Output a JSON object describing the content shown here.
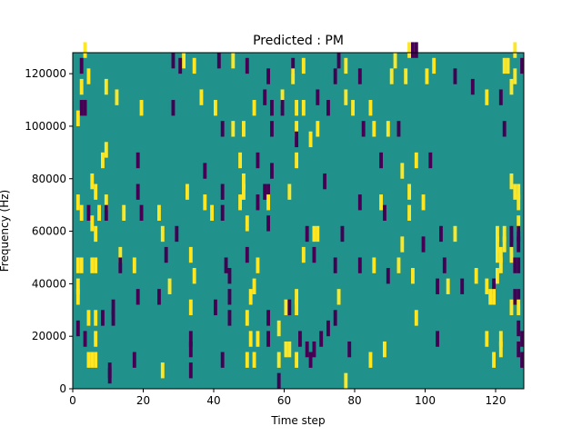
{
  "chart_data": {
    "type": "heatmap",
    "title": "Predicted : PM",
    "xlabel": "Time step",
    "ylabel": "Frequency (Hz)",
    "xlim": [
      0,
      128
    ],
    "ylim": [
      0,
      128000
    ],
    "xticks": [
      0,
      20,
      40,
      60,
      80,
      100,
      120
    ],
    "yticks": [
      0,
      20000,
      40000,
      60000,
      80000,
      100000,
      120000
    ],
    "xtick_labels": [
      "0",
      "20",
      "40",
      "60",
      "80",
      "100",
      "120"
    ],
    "ytick_labels": [
      "0",
      "20000",
      "40000",
      "60000",
      "80000",
      "100000",
      "120000"
    ],
    "colormap": "viridis",
    "values_note": "matrix of -1/0/1 values; background 0 (teal), positive 1 (yellow), negative -1 (purple)",
    "colors": {
      "zero": "#21918c",
      "positive": "#fde725",
      "negative": "#440154"
    },
    "cells": [
      {
        "t": 3,
        "f": 126000,
        "v": 1
      },
      {
        "t": 95,
        "f": 126000,
        "v": 1
      },
      {
        "t": 96,
        "f": 126000,
        "v": -1
      },
      {
        "t": 97,
        "f": 126000,
        "v": -1
      },
      {
        "t": 125,
        "f": 126000,
        "v": 1
      },
      {
        "t": 28,
        "f": 122000,
        "v": -1
      },
      {
        "t": 31,
        "f": 122000,
        "v": 1
      },
      {
        "t": 41,
        "f": 122000,
        "v": -1
      },
      {
        "t": 45,
        "f": 122000,
        "v": 1
      },
      {
        "t": 75,
        "f": 122000,
        "v": -1
      },
      {
        "t": 91,
        "f": 122000,
        "v": 1
      },
      {
        "t": 2,
        "f": 120000,
        "v": -1
      },
      {
        "t": 30,
        "f": 120000,
        "v": -1
      },
      {
        "t": 34,
        "f": 120000,
        "v": 1
      },
      {
        "t": 49,
        "f": 120000,
        "v": -1
      },
      {
        "t": 62,
        "f": 120000,
        "v": -1
      },
      {
        "t": 65,
        "f": 120000,
        "v": 1
      },
      {
        "t": 77,
        "f": 120000,
        "v": 1
      },
      {
        "t": 102,
        "f": 120000,
        "v": 1
      },
      {
        "t": 122,
        "f": 120000,
        "v": 1
      },
      {
        "t": 123,
        "f": 120000,
        "v": 1
      },
      {
        "t": 127,
        "f": 120000,
        "v": -1
      },
      {
        "t": 4,
        "f": 116000,
        "v": 1
      },
      {
        "t": 55,
        "f": 116000,
        "v": -1
      },
      {
        "t": 62,
        "f": 116000,
        "v": 1
      },
      {
        "t": 74,
        "f": 116000,
        "v": -1
      },
      {
        "t": 81,
        "f": 116000,
        "v": -1
      },
      {
        "t": 90,
        "f": 116000,
        "v": 1
      },
      {
        "t": 94,
        "f": 116000,
        "v": 1
      },
      {
        "t": 100,
        "f": 116000,
        "v": 1
      },
      {
        "t": 108,
        "f": 116000,
        "v": -1
      },
      {
        "t": 125,
        "f": 116000,
        "v": 1
      },
      {
        "t": 2,
        "f": 112000,
        "v": 1
      },
      {
        "t": 9,
        "f": 112000,
        "v": 1
      },
      {
        "t": 113,
        "f": 112000,
        "v": -1
      },
      {
        "t": 124,
        "f": 112000,
        "v": 1
      },
      {
        "t": 12,
        "f": 108000,
        "v": 1
      },
      {
        "t": 36,
        "f": 108000,
        "v": 1
      },
      {
        "t": 54,
        "f": 108000,
        "v": -1
      },
      {
        "t": 59,
        "f": 108000,
        "v": 1
      },
      {
        "t": 69,
        "f": 108000,
        "v": -1
      },
      {
        "t": 77,
        "f": 108000,
        "v": 1
      },
      {
        "t": 117,
        "f": 108000,
        "v": 1
      },
      {
        "t": 121,
        "f": 108000,
        "v": -1
      },
      {
        "t": 2,
        "f": 104000,
        "v": -1
      },
      {
        "t": 3,
        "f": 104000,
        "v": -1
      },
      {
        "t": 19,
        "f": 104000,
        "v": 1
      },
      {
        "t": 28,
        "f": 104000,
        "v": -1
      },
      {
        "t": 40,
        "f": 104000,
        "v": 1
      },
      {
        "t": 51,
        "f": 104000,
        "v": 1
      },
      {
        "t": 56,
        "f": 104000,
        "v": -1
      },
      {
        "t": 59,
        "f": 104000,
        "v": -1
      },
      {
        "t": 63,
        "f": 104000,
        "v": 1
      },
      {
        "t": 65,
        "f": 104000,
        "v": 1
      },
      {
        "t": 72,
        "f": 104000,
        "v": -1
      },
      {
        "t": 79,
        "f": 104000,
        "v": 1
      },
      {
        "t": 84,
        "f": 104000,
        "v": 1
      },
      {
        "t": 1,
        "f": 100000,
        "v": 1
      },
      {
        "t": 42,
        "f": 96000,
        "v": -1
      },
      {
        "t": 45,
        "f": 96000,
        "v": 1
      },
      {
        "t": 48,
        "f": 96000,
        "v": 1
      },
      {
        "t": 56,
        "f": 96000,
        "v": -1
      },
      {
        "t": 63,
        "f": 96000,
        "v": 1
      },
      {
        "t": 69,
        "f": 96000,
        "v": 1
      },
      {
        "t": 82,
        "f": 96000,
        "v": -1
      },
      {
        "t": 85,
        "f": 96000,
        "v": 1
      },
      {
        "t": 89,
        "f": 96000,
        "v": 1
      },
      {
        "t": 92,
        "f": 96000,
        "v": -1
      },
      {
        "t": 122,
        "f": 96000,
        "v": -1
      },
      {
        "t": 63,
        "f": 92000,
        "v": -1
      },
      {
        "t": 67,
        "f": 92000,
        "v": 1
      },
      {
        "t": 9,
        "f": 88000,
        "v": 1
      },
      {
        "t": 8,
        "f": 84000,
        "v": 1
      },
      {
        "t": 18,
        "f": 84000,
        "v": -1
      },
      {
        "t": 47,
        "f": 84000,
        "v": 1
      },
      {
        "t": 52,
        "f": 84000,
        "v": -1
      },
      {
        "t": 63,
        "f": 84000,
        "v": 1
      },
      {
        "t": 87,
        "f": 84000,
        "v": -1
      },
      {
        "t": 97,
        "f": 84000,
        "v": 1
      },
      {
        "t": 101,
        "f": 84000,
        "v": -1
      },
      {
        "t": 37,
        "f": 80000,
        "v": -1
      },
      {
        "t": 56,
        "f": 80000,
        "v": -1
      },
      {
        "t": 93,
        "f": 80000,
        "v": 1
      },
      {
        "t": 5,
        "f": 76000,
        "v": 1
      },
      {
        "t": 48,
        "f": 76000,
        "v": 1
      },
      {
        "t": 71,
        "f": 76000,
        "v": -1
      },
      {
        "t": 124,
        "f": 76000,
        "v": 1
      },
      {
        "t": 6,
        "f": 72000,
        "v": 1
      },
      {
        "t": 18,
        "f": 72000,
        "v": -1
      },
      {
        "t": 32,
        "f": 72000,
        "v": 1
      },
      {
        "t": 42,
        "f": 72000,
        "v": -1
      },
      {
        "t": 48,
        "f": 72000,
        "v": 1
      },
      {
        "t": 54,
        "f": 72000,
        "v": -1
      },
      {
        "t": 55,
        "f": 72000,
        "v": -1
      },
      {
        "t": 61,
        "f": 72000,
        "v": 1
      },
      {
        "t": 95,
        "f": 72000,
        "v": 1
      },
      {
        "t": 125,
        "f": 72000,
        "v": 1
      },
      {
        "t": 126,
        "f": 72000,
        "v": 1
      },
      {
        "t": 1,
        "f": 68000,
        "v": 1
      },
      {
        "t": 9,
        "f": 68000,
        "v": 1
      },
      {
        "t": 37,
        "f": 68000,
        "v": 1
      },
      {
        "t": 47,
        "f": 68000,
        "v": 1
      },
      {
        "t": 52,
        "f": 68000,
        "v": -1
      },
      {
        "t": 55,
        "f": 68000,
        "v": 1
      },
      {
        "t": 81,
        "f": 68000,
        "v": -1
      },
      {
        "t": 87,
        "f": 68000,
        "v": 1
      },
      {
        "t": 99,
        "f": 68000,
        "v": 1
      },
      {
        "t": 126,
        "f": 68000,
        "v": 1
      },
      {
        "t": 2,
        "f": 64000,
        "v": 1
      },
      {
        "t": 4,
        "f": 64000,
        "v": -1
      },
      {
        "t": 7,
        "f": 64000,
        "v": 1
      },
      {
        "t": 9,
        "f": 64000,
        "v": -1
      },
      {
        "t": 14,
        "f": 64000,
        "v": 1
      },
      {
        "t": 19,
        "f": 64000,
        "v": -1
      },
      {
        "t": 24,
        "f": 64000,
        "v": 1
      },
      {
        "t": 39,
        "f": 64000,
        "v": 1
      },
      {
        "t": 42,
        "f": 64000,
        "v": -1
      },
      {
        "t": 88,
        "f": 64000,
        "v": -1
      },
      {
        "t": 95,
        "f": 64000,
        "v": 1
      },
      {
        "t": 5,
        "f": 60000,
        "v": 1
      },
      {
        "t": 49,
        "f": 60000,
        "v": 1
      },
      {
        "t": 55,
        "f": 60000,
        "v": -1
      },
      {
        "t": 126,
        "f": 60000,
        "v": 1
      },
      {
        "t": 6,
        "f": 56000,
        "v": 1
      },
      {
        "t": 25,
        "f": 56000,
        "v": 1
      },
      {
        "t": 29,
        "f": 56000,
        "v": -1
      },
      {
        "t": 66,
        "f": 56000,
        "v": -1
      },
      {
        "t": 68,
        "f": 56000,
        "v": 1
      },
      {
        "t": 69,
        "f": 56000,
        "v": 1
      },
      {
        "t": 76,
        "f": 56000,
        "v": -1
      },
      {
        "t": 104,
        "f": 56000,
        "v": -1
      },
      {
        "t": 108,
        "f": 56000,
        "v": 1
      },
      {
        "t": 120,
        "f": 56000,
        "v": 1
      },
      {
        "t": 122,
        "f": 56000,
        "v": 1
      },
      {
        "t": 124,
        "f": 56000,
        "v": -1
      },
      {
        "t": 126,
        "f": 56000,
        "v": -1
      },
      {
        "t": 93,
        "f": 52000,
        "v": 1
      },
      {
        "t": 99,
        "f": 52000,
        "v": -1
      },
      {
        "t": 120,
        "f": 52000,
        "v": 1
      },
      {
        "t": 122,
        "f": 52000,
        "v": 1
      },
      {
        "t": 124,
        "f": 52000,
        "v": -1
      },
      {
        "t": 126,
        "f": 52000,
        "v": -1
      },
      {
        "t": 13,
        "f": 48000,
        "v": 1
      },
      {
        "t": 26,
        "f": 48000,
        "v": -1
      },
      {
        "t": 33,
        "f": 48000,
        "v": 1
      },
      {
        "t": 49,
        "f": 48000,
        "v": -1
      },
      {
        "t": 65,
        "f": 48000,
        "v": 1
      },
      {
        "t": 68,
        "f": 48000,
        "v": -1
      },
      {
        "t": 120,
        "f": 48000,
        "v": 1
      },
      {
        "t": 121,
        "f": 48000,
        "v": 1
      },
      {
        "t": 124,
        "f": 48000,
        "v": 1
      },
      {
        "t": 1,
        "f": 44000,
        "v": 1
      },
      {
        "t": 2,
        "f": 44000,
        "v": 1
      },
      {
        "t": 5,
        "f": 44000,
        "v": 1
      },
      {
        "t": 6,
        "f": 44000,
        "v": 1
      },
      {
        "t": 13,
        "f": 44000,
        "v": -1
      },
      {
        "t": 17,
        "f": 44000,
        "v": 1
      },
      {
        "t": 43,
        "f": 44000,
        "v": -1
      },
      {
        "t": 52,
        "f": 44000,
        "v": 1
      },
      {
        "t": 74,
        "f": 44000,
        "v": -1
      },
      {
        "t": 81,
        "f": 44000,
        "v": -1
      },
      {
        "t": 85,
        "f": 44000,
        "v": 1
      },
      {
        "t": 92,
        "f": 44000,
        "v": 1
      },
      {
        "t": 105,
        "f": 44000,
        "v": -1
      },
      {
        "t": 121,
        "f": 44000,
        "v": 1
      },
      {
        "t": 125,
        "f": 44000,
        "v": -1
      },
      {
        "t": 126,
        "f": 44000,
        "v": -1
      },
      {
        "t": 34,
        "f": 40000,
        "v": 1
      },
      {
        "t": 44,
        "f": 40000,
        "v": -1
      },
      {
        "t": 89,
        "f": 40000,
        "v": -1
      },
      {
        "t": 96,
        "f": 40000,
        "v": 1
      },
      {
        "t": 114,
        "f": 40000,
        "v": 1
      },
      {
        "t": 120,
        "f": 40000,
        "v": 1
      },
      {
        "t": 1,
        "f": 36000,
        "v": 1
      },
      {
        "t": 27,
        "f": 36000,
        "v": 1
      },
      {
        "t": 51,
        "f": 36000,
        "v": 1
      },
      {
        "t": 103,
        "f": 36000,
        "v": -1
      },
      {
        "t": 106,
        "f": 36000,
        "v": 1
      },
      {
        "t": 110,
        "f": 36000,
        "v": -1
      },
      {
        "t": 117,
        "f": 36000,
        "v": 1
      },
      {
        "t": 119,
        "f": 36000,
        "v": -1
      },
      {
        "t": 1,
        "f": 32000,
        "v": 1
      },
      {
        "t": 18,
        "f": 32000,
        "v": -1
      },
      {
        "t": 24,
        "f": 32000,
        "v": -1
      },
      {
        "t": 44,
        "f": 32000,
        "v": -1
      },
      {
        "t": 50,
        "f": 32000,
        "v": 1
      },
      {
        "t": 63,
        "f": 32000,
        "v": 1
      },
      {
        "t": 75,
        "f": 32000,
        "v": 1
      },
      {
        "t": 118,
        "f": 32000,
        "v": 1
      },
      {
        "t": 119,
        "f": 32000,
        "v": 1
      },
      {
        "t": 125,
        "f": 32000,
        "v": -1
      },
      {
        "t": 126,
        "f": 32000,
        "v": -1
      },
      {
        "t": 11,
        "f": 28000,
        "v": -1
      },
      {
        "t": 33,
        "f": 28000,
        "v": 1
      },
      {
        "t": 40,
        "f": 28000,
        "v": -1
      },
      {
        "t": 60,
        "f": 28000,
        "v": 1
      },
      {
        "t": 61,
        "f": 28000,
        "v": -1
      },
      {
        "t": 63,
        "f": 28000,
        "v": 1
      },
      {
        "t": 124,
        "f": 28000,
        "v": 1
      },
      {
        "t": 126,
        "f": 28000,
        "v": 1
      },
      {
        "t": 4,
        "f": 24000,
        "v": 1
      },
      {
        "t": 6,
        "f": 24000,
        "v": 1
      },
      {
        "t": 8,
        "f": 24000,
        "v": -1
      },
      {
        "t": 11,
        "f": 24000,
        "v": -1
      },
      {
        "t": 44,
        "f": 24000,
        "v": -1
      },
      {
        "t": 49,
        "f": 24000,
        "v": 1
      },
      {
        "t": 55,
        "f": 24000,
        "v": -1
      },
      {
        "t": 74,
        "f": 24000,
        "v": -1
      },
      {
        "t": 97,
        "f": 24000,
        "v": 1
      },
      {
        "t": 1,
        "f": 20000,
        "v": -1
      },
      {
        "t": 58,
        "f": 20000,
        "v": 1
      },
      {
        "t": 72,
        "f": 20000,
        "v": -1
      },
      {
        "t": 126,
        "f": 20000,
        "v": -1
      },
      {
        "t": 3,
        "f": 16000,
        "v": -1
      },
      {
        "t": 6,
        "f": 16000,
        "v": 1
      },
      {
        "t": 33,
        "f": 16000,
        "v": -1
      },
      {
        "t": 50,
        "f": 16000,
        "v": 1
      },
      {
        "t": 52,
        "f": 16000,
        "v": 1
      },
      {
        "t": 55,
        "f": 16000,
        "v": -1
      },
      {
        "t": 64,
        "f": 16000,
        "v": -1
      },
      {
        "t": 70,
        "f": 16000,
        "v": -1
      },
      {
        "t": 103,
        "f": 16000,
        "v": -1
      },
      {
        "t": 117,
        "f": 16000,
        "v": 1
      },
      {
        "t": 121,
        "f": 16000,
        "v": 1
      },
      {
        "t": 127,
        "f": 16000,
        "v": -1
      },
      {
        "t": 33,
        "f": 12000,
        "v": -1
      },
      {
        "t": 60,
        "f": 12000,
        "v": 1
      },
      {
        "t": 61,
        "f": 12000,
        "v": 1
      },
      {
        "t": 66,
        "f": 12000,
        "v": -1
      },
      {
        "t": 68,
        "f": 12000,
        "v": -1
      },
      {
        "t": 78,
        "f": 12000,
        "v": -1
      },
      {
        "t": 88,
        "f": 12000,
        "v": 1
      },
      {
        "t": 121,
        "f": 12000,
        "v": 1
      },
      {
        "t": 126,
        "f": 12000,
        "v": -1
      },
      {
        "t": 4,
        "f": 8000,
        "v": 1
      },
      {
        "t": 5,
        "f": 8000,
        "v": 1
      },
      {
        "t": 6,
        "f": 8000,
        "v": 1
      },
      {
        "t": 17,
        "f": 8000,
        "v": -1
      },
      {
        "t": 42,
        "f": 8000,
        "v": -1
      },
      {
        "t": 49,
        "f": 8000,
        "v": 1
      },
      {
        "t": 51,
        "f": 8000,
        "v": 1
      },
      {
        "t": 58,
        "f": 8000,
        "v": 1
      },
      {
        "t": 63,
        "f": 8000,
        "v": 1
      },
      {
        "t": 67,
        "f": 8000,
        "v": -1
      },
      {
        "t": 84,
        "f": 8000,
        "v": 1
      },
      {
        "t": 119,
        "f": 8000,
        "v": 1
      },
      {
        "t": 127,
        "f": 8000,
        "v": -1
      },
      {
        "t": 10,
        "f": 4000,
        "v": -1
      },
      {
        "t": 25,
        "f": 4000,
        "v": 1
      },
      {
        "t": 33,
        "f": 4000,
        "v": -1
      },
      {
        "t": 10,
        "f": 2000,
        "v": -1
      },
      {
        "t": 58,
        "f": 0,
        "v": -1
      },
      {
        "t": 77,
        "f": 0,
        "v": 1
      }
    ]
  }
}
